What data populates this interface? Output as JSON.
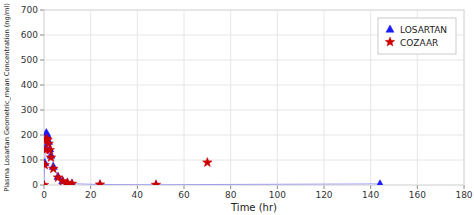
{
  "chart_data": {
    "type": "line",
    "xlabel": "Time (hr)",
    "ylabel": "Plasma Losartan Geometric_mean Concentration (ng/ml)",
    "xlim": [
      0,
      180
    ],
    "ylim": [
      0,
      700
    ],
    "xticks": [
      0,
      20,
      40,
      60,
      80,
      100,
      120,
      140,
      160,
      180
    ],
    "yticks": [
      0,
      100,
      200,
      300,
      400,
      500,
      600,
      700
    ],
    "grid": true,
    "legend": "upper right",
    "series": [
      {
        "name": "LOSARTAN",
        "type": "line",
        "color": "#1a1aff",
        "marker": "triangle",
        "line_style": "solid",
        "x": [
          0,
          0.33,
          0.67,
          1.0,
          1.5,
          2.0,
          2.5,
          3.0,
          4.0,
          6.0,
          8.0,
          10.0,
          12.0,
          24.0,
          48.0,
          144.0
        ],
        "values": [
          0,
          90,
          150,
          210,
          200,
          175,
          145,
          120,
          75,
          35,
          18,
          10,
          6,
          2,
          1,
          5
        ]
      },
      {
        "name": "COZAAR",
        "type": "scatter",
        "color": "#cc0000",
        "marker": "star",
        "line_style": "none",
        "x": [
          0,
          0.33,
          0.67,
          1.0,
          1.5,
          2.0,
          2.5,
          3.0,
          4.0,
          6.0,
          8.0,
          10.0,
          12.0,
          24.0,
          48.0,
          70.0
        ],
        "values": [
          0,
          80,
          140,
          185,
          180,
          165,
          140,
          110,
          65,
          30,
          15,
          9,
          5,
          2,
          1,
          90
        ]
      }
    ]
  }
}
